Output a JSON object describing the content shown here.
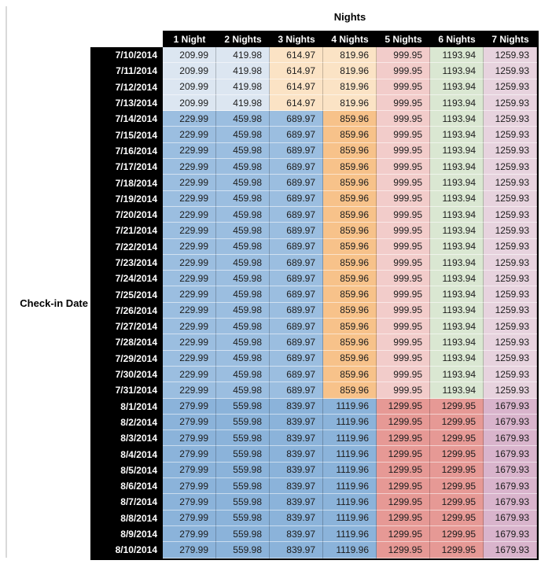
{
  "labels": {
    "nights_title": "Nights",
    "checkin_label": "Check-in Date"
  },
  "colors": {
    "header_bg": "#000000",
    "header_text": "#ffffff",
    "value_text": "#1c1c1c",
    "pane_divider": "#d9d9d9",
    "light_blue": "#DCE6F1",
    "light_orange": "#FBE3C5",
    "july_blue": "#9BBEE0",
    "med_orange": "#F7C28A",
    "light_red": "#F2CCCA",
    "light_green": "#DAE7D2",
    "light_pink": "#E7D3DE",
    "august_blue": "#8BB3DA",
    "salmon": "#E69995",
    "mauve": "#D9B4CC"
  },
  "cell_color_map": {
    "early_july": [
      "light_blue",
      "light_blue",
      "light_orange",
      "light_orange",
      "light_red",
      "light_green",
      "light_pink"
    ],
    "mid_july": [
      "july_blue",
      "july_blue",
      "july_blue",
      "med_orange",
      "light_red",
      "light_green",
      "light_pink"
    ],
    "august": [
      "august_blue",
      "august_blue",
      "august_blue",
      "august_blue",
      "salmon",
      "salmon",
      "mauve"
    ]
  },
  "chart_data": {
    "type": "table",
    "title": "Nights",
    "row_axis_label": "Check-in Date",
    "columns": [
      "1 Night",
      "2 Nights",
      "3 Nights",
      "4 Nights",
      "5 Nights",
      "6 Nights",
      "7 Nights"
    ],
    "rows": [
      {
        "date": "7/10/2014",
        "group": "early_july",
        "values": [
          209.99,
          419.98,
          614.97,
          819.96,
          999.95,
          1193.94,
          1259.93
        ]
      },
      {
        "date": "7/11/2014",
        "group": "early_july",
        "values": [
          209.99,
          419.98,
          614.97,
          819.96,
          999.95,
          1193.94,
          1259.93
        ]
      },
      {
        "date": "7/12/2014",
        "group": "early_july",
        "values": [
          209.99,
          419.98,
          614.97,
          819.96,
          999.95,
          1193.94,
          1259.93
        ]
      },
      {
        "date": "7/13/2014",
        "group": "early_july",
        "values": [
          209.99,
          419.98,
          614.97,
          819.96,
          999.95,
          1193.94,
          1259.93
        ]
      },
      {
        "date": "7/14/2014",
        "group": "mid_july",
        "values": [
          229.99,
          459.98,
          689.97,
          859.96,
          999.95,
          1193.94,
          1259.93
        ]
      },
      {
        "date": "7/15/2014",
        "group": "mid_july",
        "values": [
          229.99,
          459.98,
          689.97,
          859.96,
          999.95,
          1193.94,
          1259.93
        ]
      },
      {
        "date": "7/16/2014",
        "group": "mid_july",
        "values": [
          229.99,
          459.98,
          689.97,
          859.96,
          999.95,
          1193.94,
          1259.93
        ]
      },
      {
        "date": "7/17/2014",
        "group": "mid_july",
        "values": [
          229.99,
          459.98,
          689.97,
          859.96,
          999.95,
          1193.94,
          1259.93
        ]
      },
      {
        "date": "7/18/2014",
        "group": "mid_july",
        "values": [
          229.99,
          459.98,
          689.97,
          859.96,
          999.95,
          1193.94,
          1259.93
        ]
      },
      {
        "date": "7/19/2014",
        "group": "mid_july",
        "values": [
          229.99,
          459.98,
          689.97,
          859.96,
          999.95,
          1193.94,
          1259.93
        ]
      },
      {
        "date": "7/20/2014",
        "group": "mid_july",
        "values": [
          229.99,
          459.98,
          689.97,
          859.96,
          999.95,
          1193.94,
          1259.93
        ]
      },
      {
        "date": "7/21/2014",
        "group": "mid_july",
        "values": [
          229.99,
          459.98,
          689.97,
          859.96,
          999.95,
          1193.94,
          1259.93
        ]
      },
      {
        "date": "7/22/2014",
        "group": "mid_july",
        "values": [
          229.99,
          459.98,
          689.97,
          859.96,
          999.95,
          1193.94,
          1259.93
        ]
      },
      {
        "date": "7/23/2014",
        "group": "mid_july",
        "values": [
          229.99,
          459.98,
          689.97,
          859.96,
          999.95,
          1193.94,
          1259.93
        ]
      },
      {
        "date": "7/24/2014",
        "group": "mid_july",
        "values": [
          229.99,
          459.98,
          689.97,
          859.96,
          999.95,
          1193.94,
          1259.93
        ]
      },
      {
        "date": "7/25/2014",
        "group": "mid_july",
        "values": [
          229.99,
          459.98,
          689.97,
          859.96,
          999.95,
          1193.94,
          1259.93
        ]
      },
      {
        "date": "7/26/2014",
        "group": "mid_july",
        "values": [
          229.99,
          459.98,
          689.97,
          859.96,
          999.95,
          1193.94,
          1259.93
        ]
      },
      {
        "date": "7/27/2014",
        "group": "mid_july",
        "values": [
          229.99,
          459.98,
          689.97,
          859.96,
          999.95,
          1193.94,
          1259.93
        ]
      },
      {
        "date": "7/28/2014",
        "group": "mid_july",
        "values": [
          229.99,
          459.98,
          689.97,
          859.96,
          999.95,
          1193.94,
          1259.93
        ]
      },
      {
        "date": "7/29/2014",
        "group": "mid_july",
        "values": [
          229.99,
          459.98,
          689.97,
          859.96,
          999.95,
          1193.94,
          1259.93
        ]
      },
      {
        "date": "7/30/2014",
        "group": "mid_july",
        "values": [
          229.99,
          459.98,
          689.97,
          859.96,
          999.95,
          1193.94,
          1259.93
        ]
      },
      {
        "date": "7/31/2014",
        "group": "mid_july",
        "values": [
          229.99,
          459.98,
          689.97,
          859.96,
          999.95,
          1193.94,
          1259.93
        ]
      },
      {
        "date": "8/1/2014",
        "group": "august",
        "values": [
          279.99,
          559.98,
          839.97,
          1119.96,
          1299.95,
          1299.95,
          1679.93
        ]
      },
      {
        "date": "8/2/2014",
        "group": "august",
        "values": [
          279.99,
          559.98,
          839.97,
          1119.96,
          1299.95,
          1299.95,
          1679.93
        ]
      },
      {
        "date": "8/3/2014",
        "group": "august",
        "values": [
          279.99,
          559.98,
          839.97,
          1119.96,
          1299.95,
          1299.95,
          1679.93
        ]
      },
      {
        "date": "8/4/2014",
        "group": "august",
        "values": [
          279.99,
          559.98,
          839.97,
          1119.96,
          1299.95,
          1299.95,
          1679.93
        ]
      },
      {
        "date": "8/5/2014",
        "group": "august",
        "values": [
          279.99,
          559.98,
          839.97,
          1119.96,
          1299.95,
          1299.95,
          1679.93
        ]
      },
      {
        "date": "8/6/2014",
        "group": "august",
        "values": [
          279.99,
          559.98,
          839.97,
          1119.96,
          1299.95,
          1299.95,
          1679.93
        ]
      },
      {
        "date": "8/7/2014",
        "group": "august",
        "values": [
          279.99,
          559.98,
          839.97,
          1119.96,
          1299.95,
          1299.95,
          1679.93
        ]
      },
      {
        "date": "8/8/2014",
        "group": "august",
        "values": [
          279.99,
          559.98,
          839.97,
          1119.96,
          1299.95,
          1299.95,
          1679.93
        ]
      },
      {
        "date": "8/9/2014",
        "group": "august",
        "values": [
          279.99,
          559.98,
          839.97,
          1119.96,
          1299.95,
          1299.95,
          1679.93
        ]
      },
      {
        "date": "8/10/2014",
        "group": "august",
        "values": [
          279.99,
          559.98,
          839.97,
          1119.96,
          1299.95,
          1299.95,
          1679.93
        ]
      }
    ]
  }
}
